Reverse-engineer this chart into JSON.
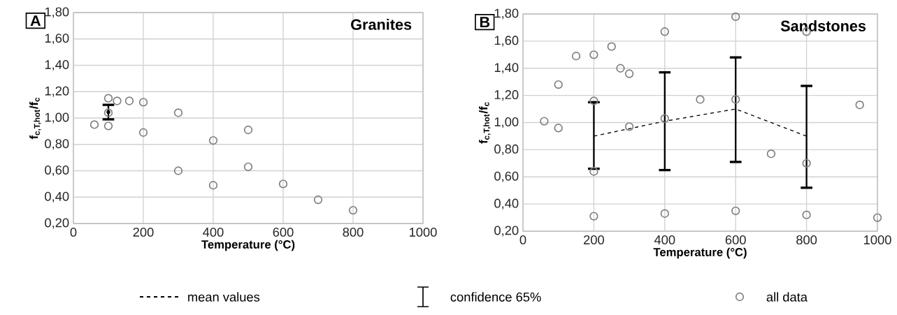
{
  "chart_data": [
    {
      "type": "scatter",
      "title": "A",
      "subtitle": "Granites",
      "xlabel": "Temperature (°C)",
      "ylabel": "f$_{c,T,hot}$/f$_{c}$",
      "xlim": [
        0,
        1000
      ],
      "ylim": [
        0.2,
        1.8
      ],
      "xticks": [
        0,
        200,
        400,
        600,
        800,
        1000
      ],
      "yticks": [
        {
          "value": 0.2,
          "label": "0,20"
        },
        {
          "value": 0.4,
          "label": "0,40"
        },
        {
          "value": 0.6,
          "label": "0,60"
        },
        {
          "value": 0.8,
          "label": "0,80"
        },
        {
          "value": 1.0,
          "label": "1,00"
        },
        {
          "value": 1.2,
          "label": "1,20"
        },
        {
          "value": 1.4,
          "label": "1,40"
        },
        {
          "value": 1.6,
          "label": "1,60"
        },
        {
          "value": 1.8,
          "label": "1,80"
        }
      ],
      "grid": true,
      "series": [
        {
          "type": "line",
          "color": "#000000",
          "line_style": "dashed",
          "marker": "none",
          "x": [
            100
          ],
          "values": [
            1.045
          ],
          "errors": [
            [
              0.99,
              1.1
            ]
          ]
        },
        {
          "type": "scatter",
          "color": "#808080",
          "marker": "circle",
          "x": [
            60,
            100,
            100,
            100,
            125,
            160,
            200,
            200,
            300,
            300,
            400,
            400,
            500,
            500,
            600,
            700,
            800
          ],
          "values": [
            0.95,
            1.15,
            1.04,
            0.94,
            1.13,
            1.13,
            1.12,
            0.89,
            1.04,
            0.6,
            0.83,
            0.49,
            0.91,
            0.63,
            0.5,
            0.38,
            0.3
          ]
        }
      ]
    },
    {
      "type": "scatter",
      "title": "B",
      "subtitle": "Sandstones",
      "xlabel": "Temperature (°C)",
      "ylabel": "f$_{c,T,hot}$/f$_{c}$",
      "xlim": [
        0,
        1000
      ],
      "ylim": [
        0.2,
        1.8
      ],
      "xticks": [
        0,
        200,
        400,
        600,
        800,
        1000
      ],
      "yticks": [
        {
          "value": 0.2,
          "label": "0,20"
        },
        {
          "value": 0.4,
          "label": "0,40"
        },
        {
          "value": 0.6,
          "label": "0,60"
        },
        {
          "value": 0.8,
          "label": "0,80"
        },
        {
          "value": 1.0,
          "label": "1,00"
        },
        {
          "value": 1.2,
          "label": "1,20"
        },
        {
          "value": 1.4,
          "label": "1,40"
        },
        {
          "value": 1.6,
          "label": "1,60"
        },
        {
          "value": 1.8,
          "label": "1,80"
        }
      ],
      "grid": true,
      "legend": "bottom",
      "annotations": [
        "confidence 65%"
      ],
      "series": [
        {
          "name": "mean values",
          "type": "line",
          "color": "#000000",
          "line_style": "dashed",
          "marker": "none",
          "x": [
            200,
            400,
            600,
            800
          ],
          "values": [
            0.9,
            1.01,
            1.1,
            0.9
          ],
          "errors": [
            [
              0.66,
              1.15
            ],
            [
              0.65,
              1.37
            ],
            [
              0.71,
              1.48
            ],
            [
              0.52,
              1.27
            ]
          ]
        },
        {
          "name": "all data",
          "type": "scatter",
          "color": "#808080",
          "marker": "circle",
          "x": [
            60,
            100,
            100,
            150,
            200,
            200,
            200,
            200,
            250,
            275,
            300,
            300,
            400,
            400,
            400,
            500,
            600,
            600,
            600,
            700,
            800,
            800,
            800,
            950,
            1000
          ],
          "values": [
            1.01,
            1.28,
            0.96,
            1.49,
            1.5,
            1.16,
            0.64,
            0.31,
            1.56,
            1.4,
            1.36,
            0.97,
            1.67,
            1.03,
            0.33,
            1.17,
            1.78,
            1.17,
            0.35,
            0.77,
            1.67,
            0.7,
            0.32,
            1.13,
            0.3
          ]
        }
      ]
    }
  ]
}
